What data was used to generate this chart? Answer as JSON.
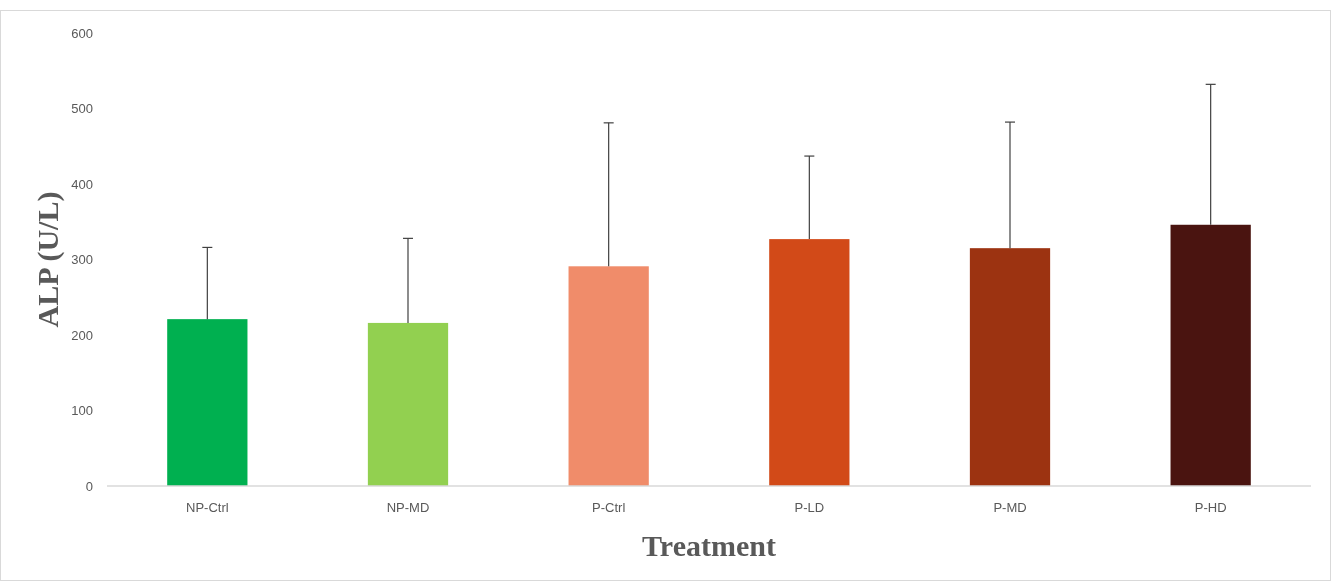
{
  "chart_data": {
    "type": "bar",
    "xlabel": "Treatment",
    "ylabel": "ALP (U/L)",
    "categories": [
      "NP-Ctrl",
      "NP-MD",
      "P-Ctrl",
      "P-LD",
      "P-MD",
      "P-HD"
    ],
    "values": [
      221,
      216,
      291,
      327,
      315,
      346
    ],
    "colors": [
      "#00b050",
      "#92d050",
      "#f08c6a",
      "#d24a18",
      "#9c3311",
      "#4a1410"
    ],
    "errors": [
      [
        221,
        316
      ],
      [
        216,
        328
      ],
      [
        291,
        481
      ],
      [
        327,
        437
      ],
      [
        315,
        482
      ],
      [
        346,
        532
      ]
    ],
    "ylim": [
      0,
      600
    ],
    "yticks": [
      0,
      100,
      200,
      300,
      400,
      500,
      600
    ],
    "grid": false
  }
}
